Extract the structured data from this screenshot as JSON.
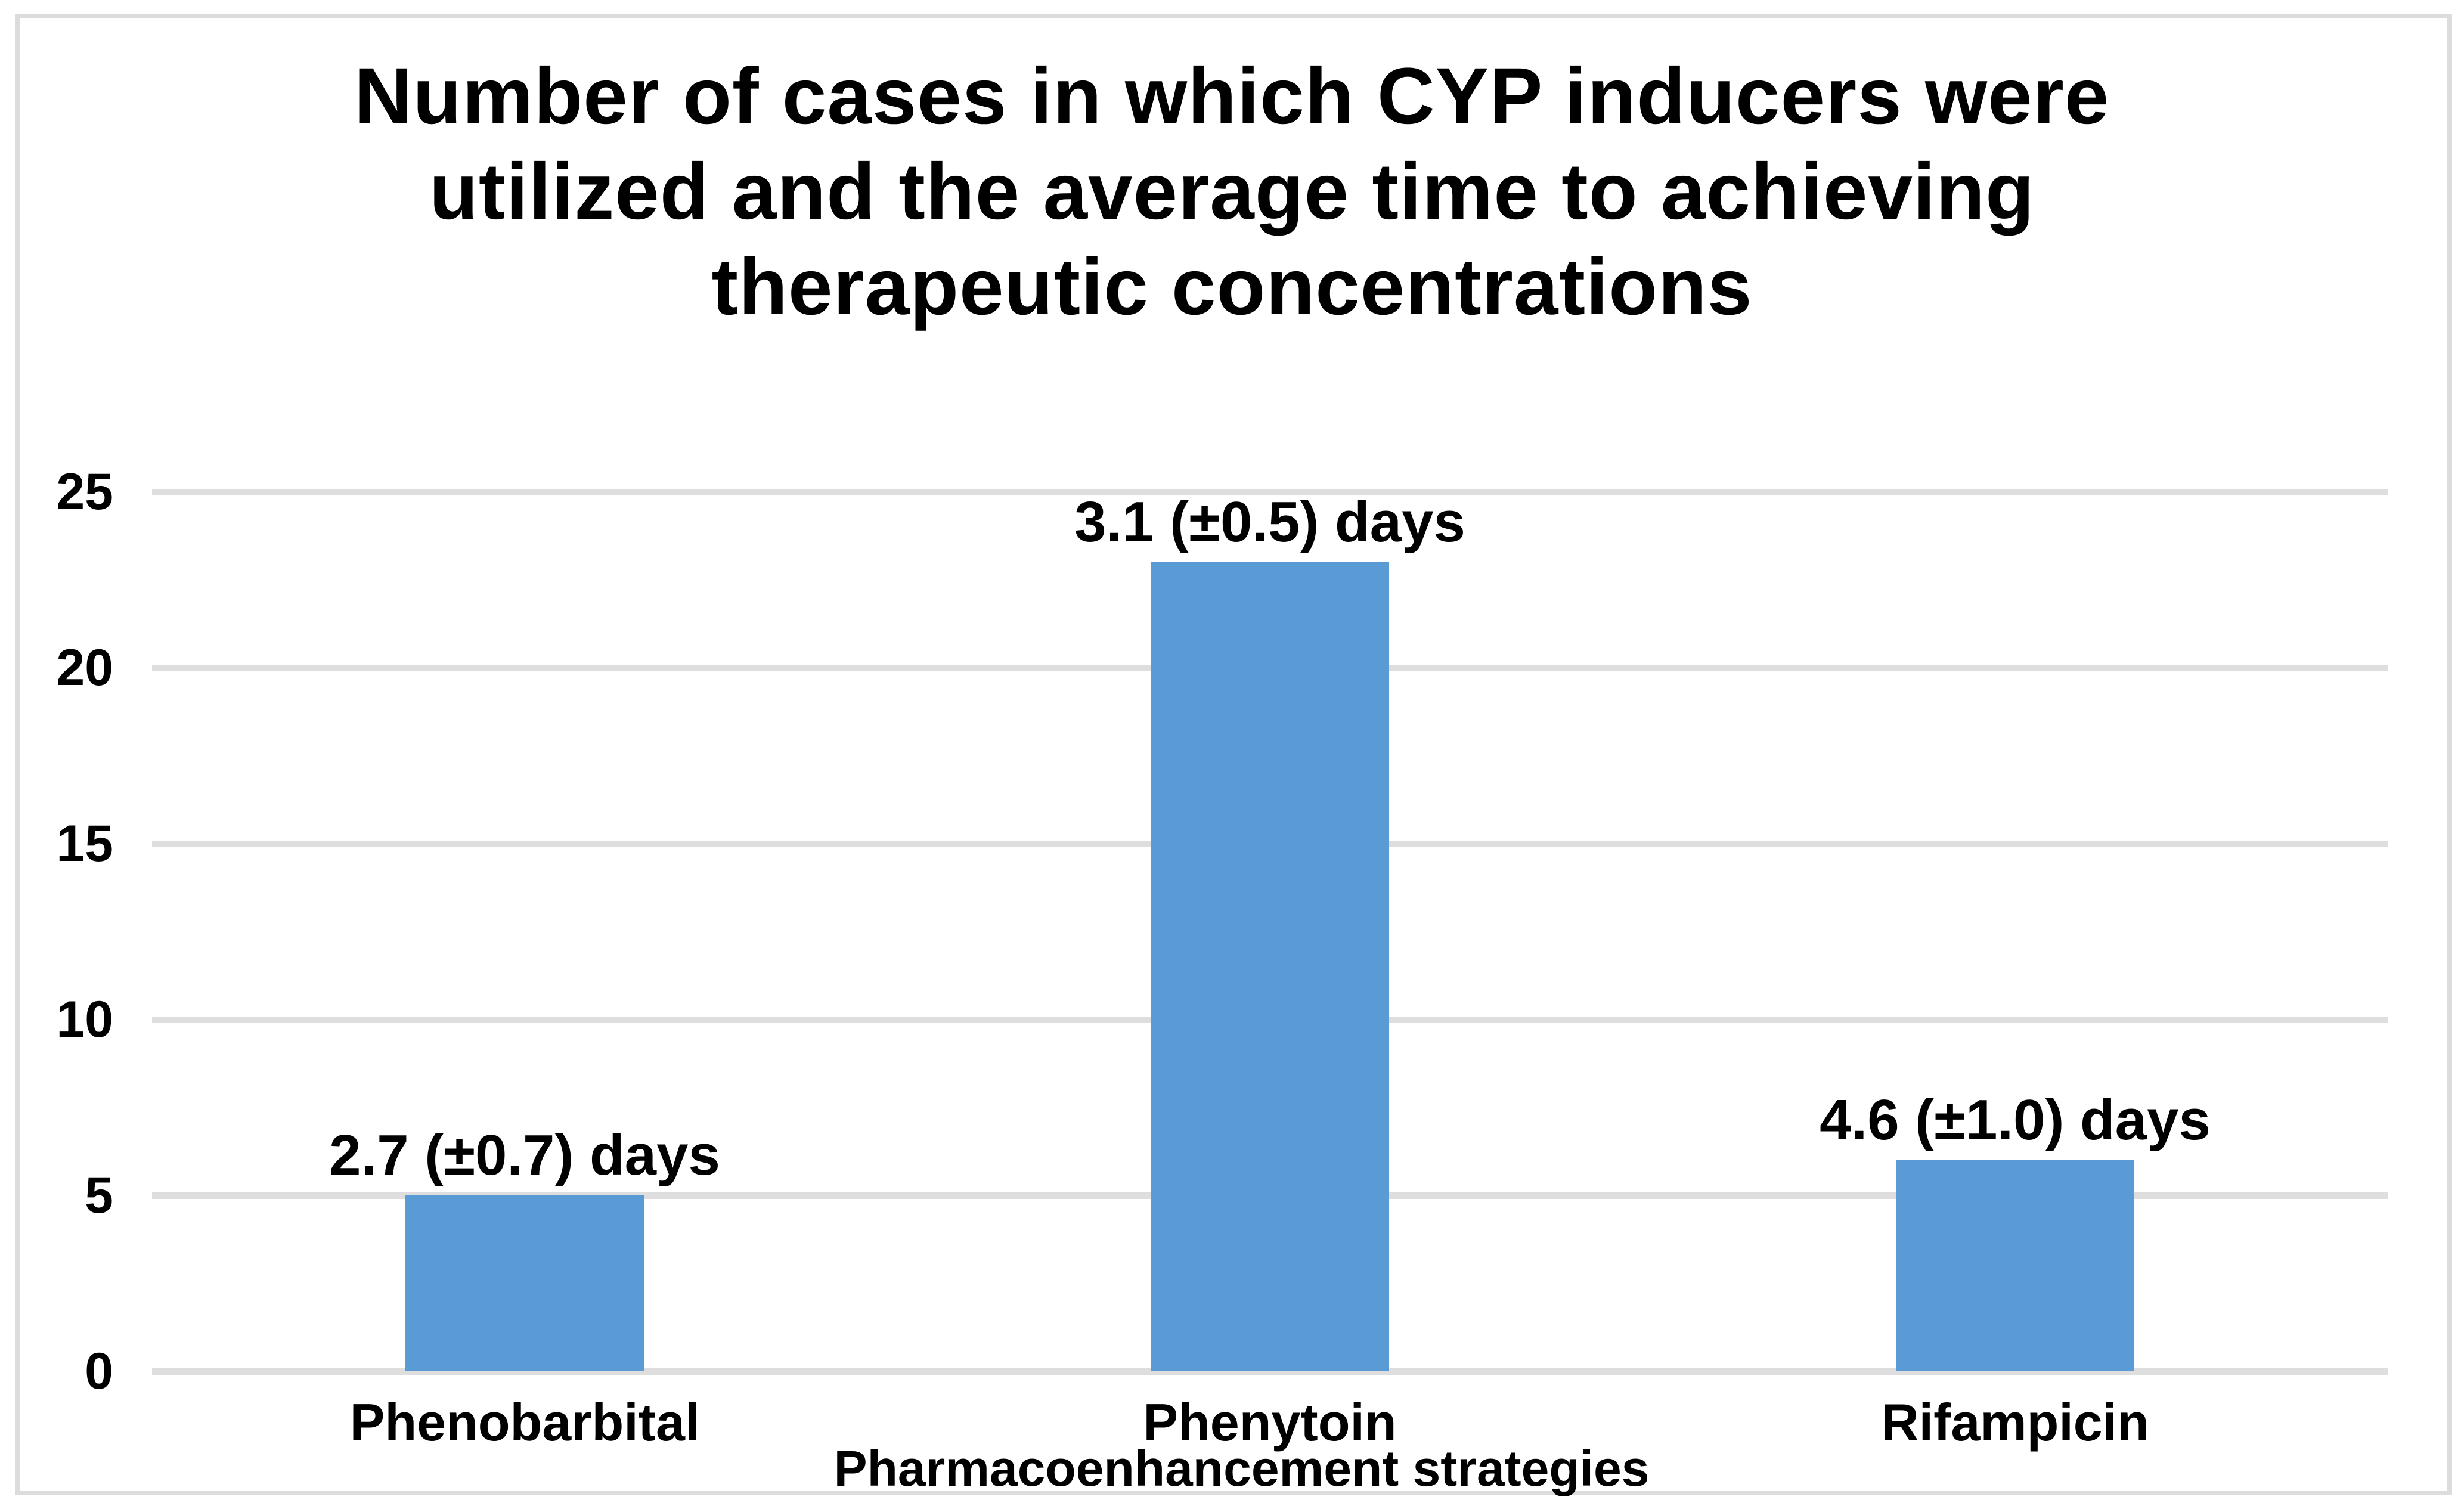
{
  "chart_data": {
    "type": "bar",
    "title": "Number of cases in which CYP inducers were utilized and the average time to achieving therapeutic concentrations",
    "title_lines": [
      "Number of cases in which CYP inducers were",
      "utilized and the average time to achieving",
      "therapeutic concentrations"
    ],
    "categories": [
      "Phenobarbital",
      "Phenytoin",
      "Rifampicin"
    ],
    "values": [
      5,
      23,
      6
    ],
    "bar_labels": [
      "2.7 (±0.7) days",
      "3.1 (±0.5) days",
      "4.6 (±1.0) days"
    ],
    "xlabel": "Pharmacoenhancement strategies",
    "ylabel": "",
    "ylim": [
      0,
      25
    ],
    "yticks": [
      0,
      5,
      10,
      15,
      20,
      25
    ],
    "grid": true,
    "legend": false,
    "bar_color": "#5B9BD5",
    "gridline_color": "#dedede",
    "frame_color": "#dcdcdc",
    "text_color": "#000000",
    "background_color": "#ffffff"
  }
}
